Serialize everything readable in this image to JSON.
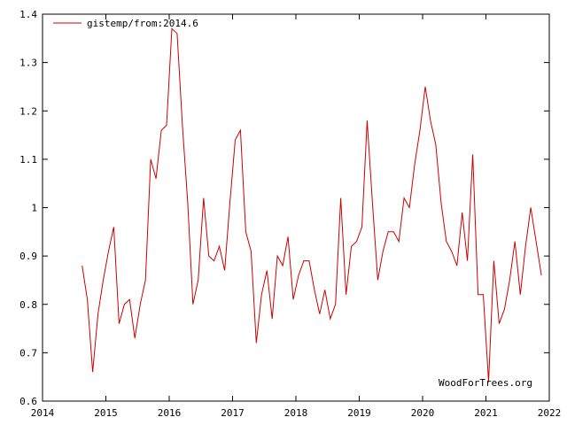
{
  "colors": {
    "series": "#cc0000",
    "axis": "#000000",
    "background": "#ffffff"
  },
  "watermark": "WoodForTrees.org",
  "chart_data": {
    "type": "line",
    "title": "",
    "xlabel": "",
    "ylabel": "",
    "xlim": [
      2014,
      2022
    ],
    "ylim": [
      0.6,
      1.4
    ],
    "x_ticks": [
      2014,
      2015,
      2016,
      2017,
      2018,
      2019,
      2020,
      2021,
      2022
    ],
    "x_tick_labels": [
      "2014",
      "2015",
      "2016",
      "2017",
      "2018",
      "2019",
      "2020",
      "2021",
      "2022"
    ],
    "y_ticks": [
      0.6,
      0.7,
      0.8,
      0.9,
      1.0,
      1.1,
      1.2,
      1.3,
      1.4
    ],
    "y_tick_labels": [
      "0.6",
      "0.7",
      "0.8",
      "0.9",
      "1",
      "1.1",
      "1.2",
      "1.3",
      "1.4"
    ],
    "grid": false,
    "legend_position": "top-left",
    "series": [
      {
        "name": "gistemp/from:2014.6",
        "x": [
          2014.625,
          2014.708,
          2014.792,
          2014.875,
          2014.958,
          2015.042,
          2015.125,
          2015.208,
          2015.292,
          2015.375,
          2015.458,
          2015.542,
          2015.625,
          2015.708,
          2015.792,
          2015.875,
          2015.958,
          2016.042,
          2016.125,
          2016.208,
          2016.292,
          2016.375,
          2016.458,
          2016.542,
          2016.625,
          2016.708,
          2016.792,
          2016.875,
          2016.958,
          2017.042,
          2017.125,
          2017.208,
          2017.292,
          2017.375,
          2017.458,
          2017.542,
          2017.625,
          2017.708,
          2017.792,
          2017.875,
          2017.958,
          2018.042,
          2018.125,
          2018.208,
          2018.292,
          2018.375,
          2018.458,
          2018.542,
          2018.625,
          2018.708,
          2018.792,
          2018.875,
          2018.958,
          2019.042,
          2019.125,
          2019.208,
          2019.292,
          2019.375,
          2019.458,
          2019.542,
          2019.625,
          2019.708,
          2019.792,
          2019.875,
          2019.958,
          2020.042,
          2020.125,
          2020.208,
          2020.292,
          2020.375,
          2020.458,
          2020.542,
          2020.625,
          2020.708,
          2020.792,
          2020.875,
          2020.958,
          2021.042,
          2021.125,
          2021.208,
          2021.292,
          2021.375,
          2021.458,
          2021.542,
          2021.625,
          2021.708,
          2021.792,
          2021.875
        ],
        "y": [
          0.88,
          0.81,
          0.66,
          0.78,
          0.85,
          0.91,
          0.96,
          0.76,
          0.8,
          0.81,
          0.73,
          0.8,
          0.85,
          1.1,
          1.06,
          1.16,
          1.17,
          1.37,
          1.36,
          1.17,
          1.01,
          0.8,
          0.85,
          1.02,
          0.9,
          0.89,
          0.92,
          0.87,
          1.01,
          1.14,
          1.16,
          0.95,
          0.91,
          0.72,
          0.82,
          0.87,
          0.77,
          0.9,
          0.88,
          0.94,
          0.81,
          0.86,
          0.89,
          0.89,
          0.83,
          0.78,
          0.83,
          0.77,
          0.8,
          1.02,
          0.82,
          0.92,
          0.93,
          0.96,
          1.18,
          1.01,
          0.85,
          0.91,
          0.95,
          0.95,
          0.93,
          1.02,
          1.0,
          1.09,
          1.16,
          1.25,
          1.18,
          1.13,
          1.01,
          0.93,
          0.91,
          0.88,
          0.99,
          0.89,
          1.11,
          0.82,
          0.82,
          0.64,
          0.89,
          0.76,
          0.79,
          0.85,
          0.93,
          0.82,
          0.92,
          1.0,
          0.93,
          0.86
        ]
      }
    ]
  }
}
